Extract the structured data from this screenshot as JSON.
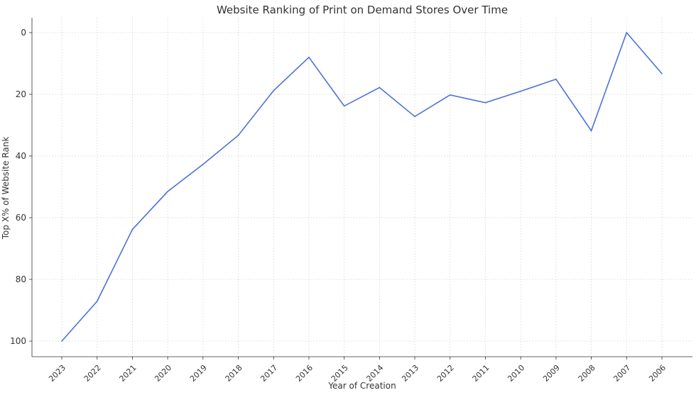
{
  "chart_data": {
    "type": "line",
    "title": "Website Ranking of Print on Demand Stores Over Time",
    "xlabel": "Year of Creation",
    "ylabel": "Top X% of Website Rank",
    "categories": [
      "2023",
      "2022",
      "2021",
      "2020",
      "2019",
      "2018",
      "2017",
      "2016",
      "2015",
      "2014",
      "2013",
      "2012",
      "2011",
      "2010",
      "2009",
      "2008",
      "2007",
      "2006"
    ],
    "values": [
      100,
      87.1,
      63.8,
      51.5,
      42.7,
      33.3,
      18.8,
      8.0,
      23.8,
      17.8,
      27.2,
      20.2,
      22.7,
      19.0,
      15.1,
      31.8,
      0,
      13.3
    ],
    "ylim": [
      0,
      100
    ],
    "y_inverted": true,
    "yticks": [
      0,
      20,
      40,
      60,
      80,
      100
    ],
    "grid": true,
    "line_color": "#4c72d8"
  }
}
